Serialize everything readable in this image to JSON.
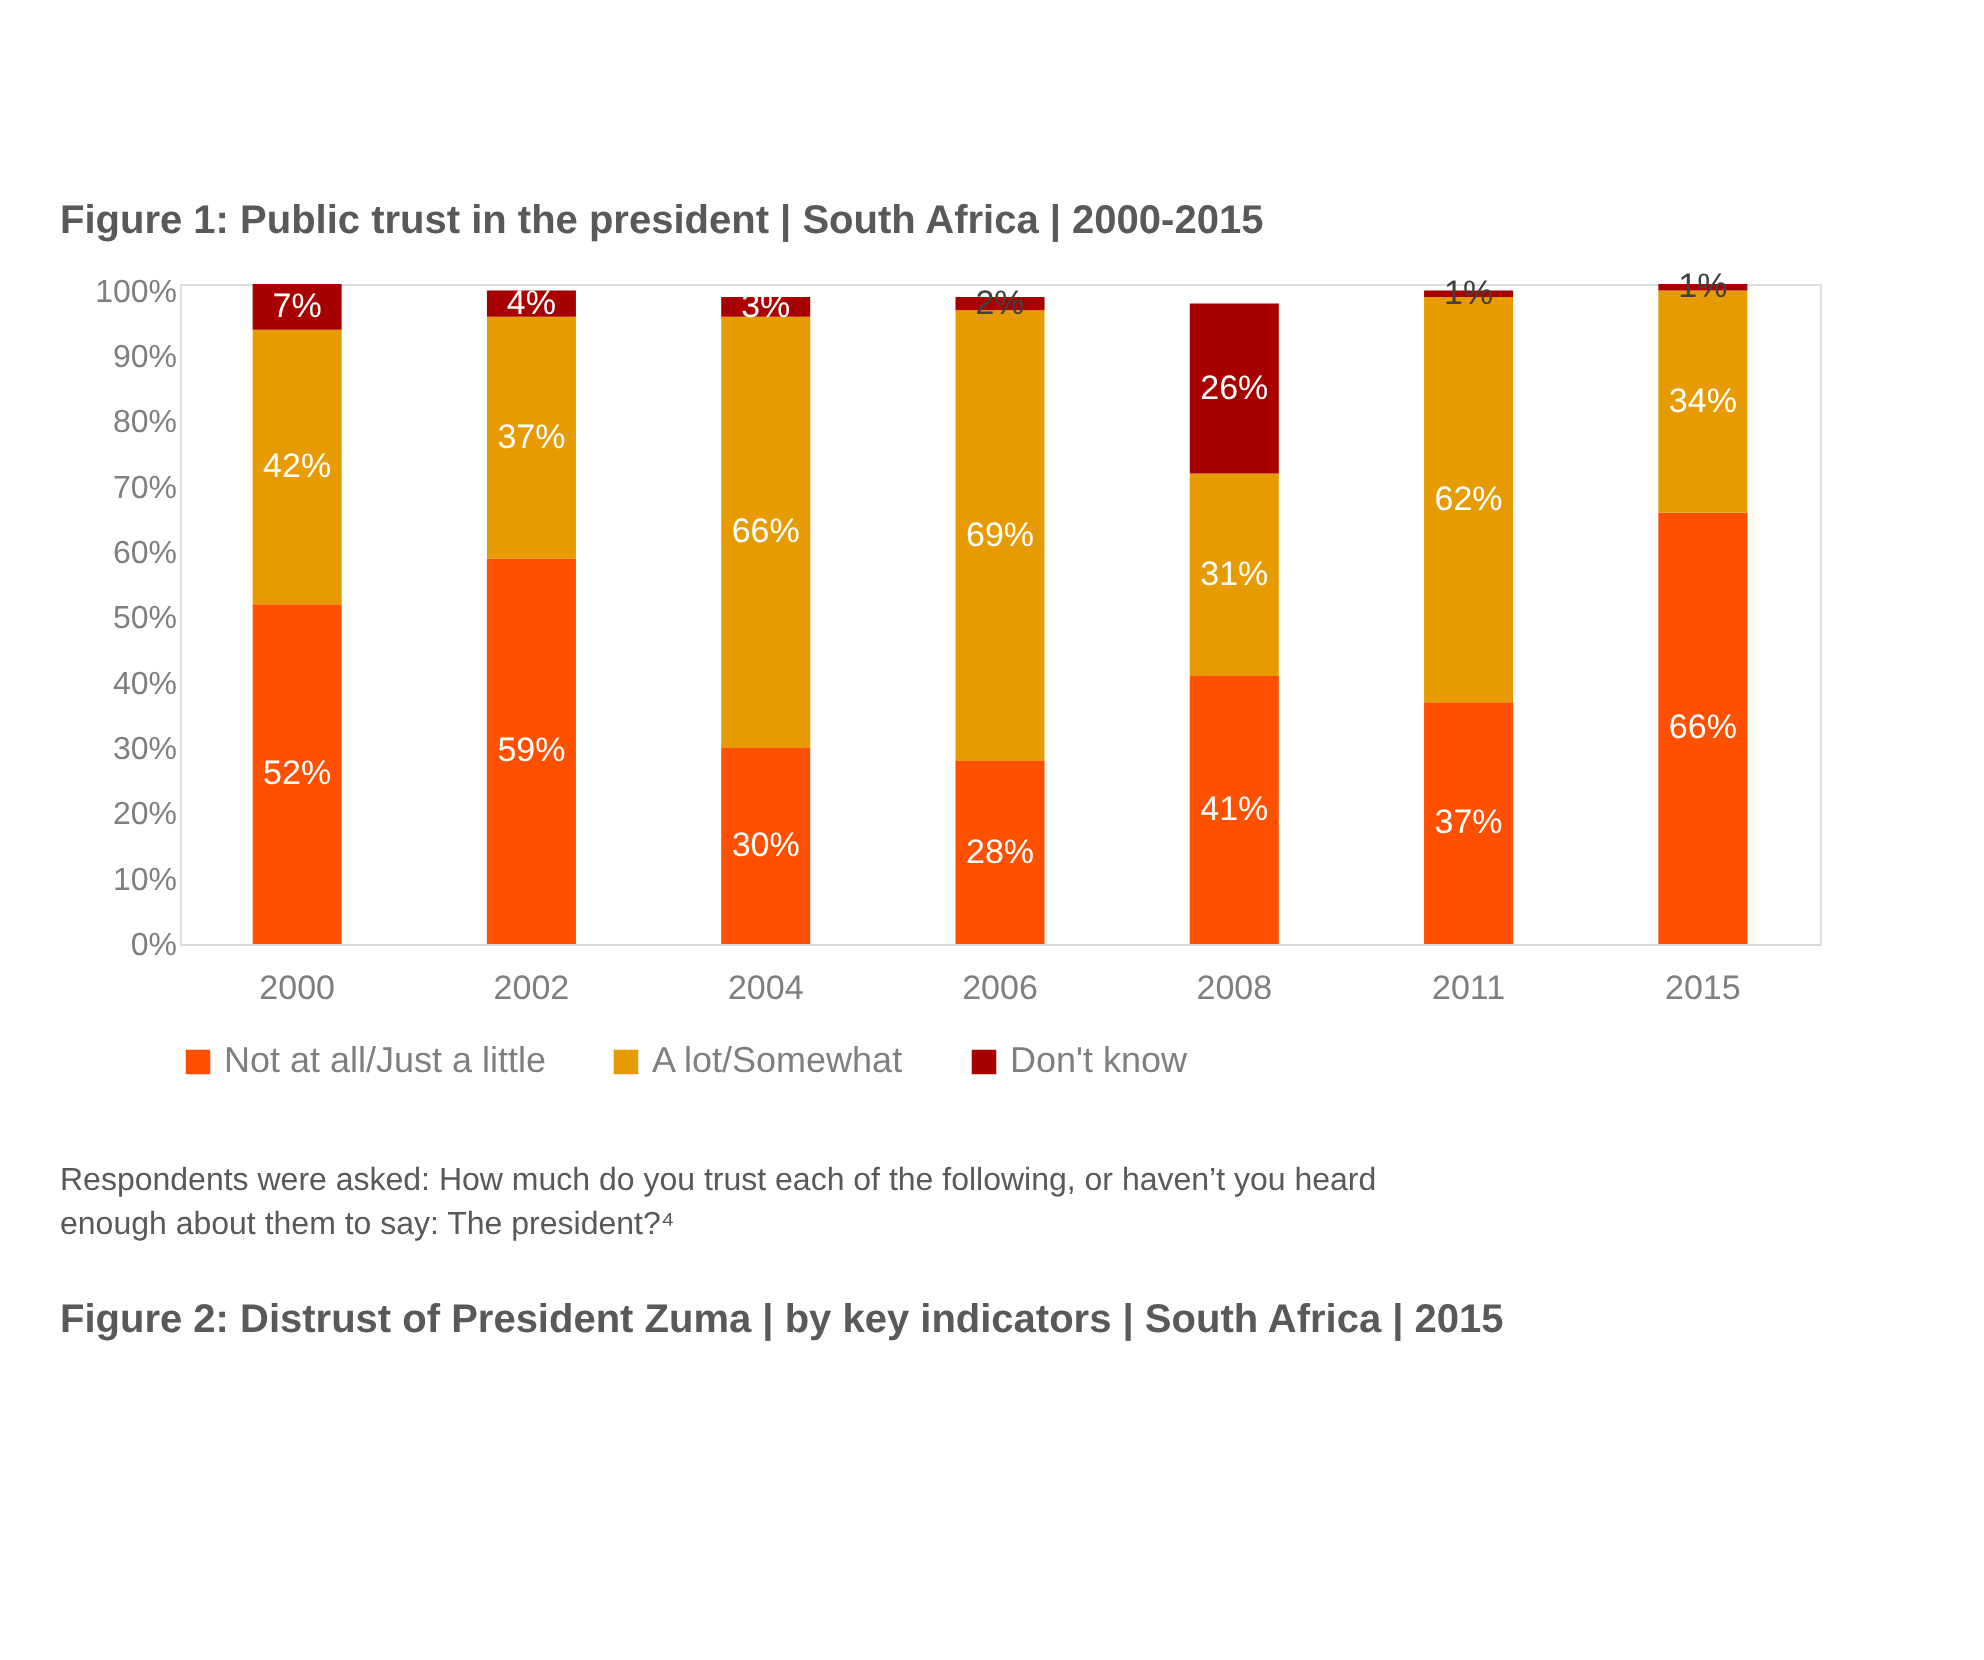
{
  "chart_data": {
    "type": "bar",
    "stacked": true,
    "title": "Figure 1: Public trust in the president | South Africa | 2000-2015",
    "categories": [
      "2000",
      "2002",
      "2004",
      "2006",
      "2008",
      "2011",
      "2015"
    ],
    "series": [
      {
        "name": "Not at all/Just a little",
        "color": "#ff5000",
        "values": [
          52,
          59,
          30,
          28,
          41,
          37,
          66
        ],
        "value_labels": [
          "52%",
          "59%",
          "30%",
          "28%",
          "41%",
          "37%",
          "66%"
        ]
      },
      {
        "name": "A lot/Somewhat",
        "color": "#e69c00",
        "values": [
          42,
          37,
          66,
          69,
          31,
          62,
          34
        ],
        "value_labels": [
          "42%",
          "37%",
          "66%",
          "69%",
          "31%",
          "62%",
          "34%"
        ]
      },
      {
        "name": "Don't know",
        "color": "#a80000",
        "values": [
          7,
          4,
          3,
          2,
          26,
          1,
          1
        ],
        "value_labels": [
          "7%",
          "4%",
          "3%",
          "2%",
          "26%",
          "1%",
          "1%"
        ]
      }
    ],
    "ylim": [
      0,
      101
    ],
    "yticks": [
      {
        "value": 0,
        "label": "0%"
      },
      {
        "value": 10,
        "label": "10%"
      },
      {
        "value": 20,
        "label": "20%"
      },
      {
        "value": 30,
        "label": "30%"
      },
      {
        "value": 40,
        "label": "40%"
      },
      {
        "value": 50,
        "label": "50%"
      },
      {
        "value": 60,
        "label": "60%"
      },
      {
        "value": 70,
        "label": "70%"
      },
      {
        "value": 80,
        "label": "80%"
      },
      {
        "value": 90,
        "label": "90%"
      },
      {
        "value": 100,
        "label": "100%"
      }
    ],
    "grid": false,
    "legend": "bottom",
    "annotations": [
      "Respondents were asked: How much do you trust each of the following, or haven’t you heard enough about them to say: The president?⁴",
      "Figure 2: Distrust of President Zuma | by key indicators | South Africa | 2015"
    ]
  }
}
